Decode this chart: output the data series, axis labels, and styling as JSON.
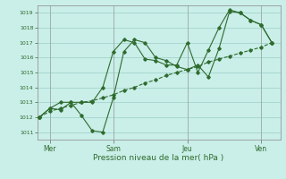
{
  "bg_color": "#caeee8",
  "grid_color": "#8ec8c0",
  "line_color": "#2e6b2e",
  "xlabel": "Pression niveau de la mer( hPa )",
  "ylim": [
    1010.5,
    1019.5
  ],
  "yticks": [
    1011,
    1012,
    1013,
    1014,
    1015,
    1016,
    1017,
    1018,
    1019
  ],
  "xlim": [
    -0.1,
    11.4
  ],
  "day_ticks": [
    0.5,
    3.5,
    7.0,
    10.5
  ],
  "day_labels": [
    "Mer",
    "Sam",
    "Jeu",
    "Ven"
  ],
  "day_vlines": [
    0.5,
    3.5,
    7.0,
    10.5
  ],
  "trend_x": [
    0.0,
    0.5,
    1.0,
    1.5,
    2.0,
    2.5,
    3.0,
    3.5,
    4.0,
    4.5,
    5.0,
    5.5,
    6.0,
    6.5,
    7.0,
    7.5,
    8.0,
    8.5,
    9.0,
    9.5,
    10.0,
    10.5,
    11.0
  ],
  "trend_y": [
    1012.0,
    1012.4,
    1012.6,
    1012.8,
    1013.0,
    1013.1,
    1013.3,
    1013.5,
    1013.8,
    1014.0,
    1014.3,
    1014.5,
    1014.8,
    1015.0,
    1015.2,
    1015.4,
    1015.7,
    1015.9,
    1016.1,
    1016.3,
    1016.5,
    1016.7,
    1017.0
  ],
  "line2_x": [
    0.0,
    0.5,
    1.0,
    1.5,
    2.0,
    2.5,
    3.0,
    3.5,
    4.0,
    4.5,
    5.0,
    5.5,
    6.0,
    6.5,
    7.0,
    7.5,
    8.0,
    8.5,
    9.0,
    9.5,
    10.0,
    10.5,
    11.0
  ],
  "line2_y": [
    1012.0,
    1012.6,
    1013.0,
    1013.0,
    1012.1,
    1011.1,
    1011.0,
    1013.3,
    1016.4,
    1017.2,
    1017.0,
    1016.0,
    1015.8,
    1015.4,
    1015.2,
    1015.5,
    1014.7,
    1016.6,
    1019.1,
    1019.0,
    1018.5,
    1018.2,
    1017.0
  ],
  "line3_x": [
    0.0,
    0.5,
    1.0,
    1.5,
    2.0,
    2.5,
    3.0,
    3.5,
    4.0,
    4.5,
    5.0,
    5.5,
    6.0,
    6.5,
    7.0,
    7.5,
    8.0,
    8.5,
    9.0,
    9.5,
    10.0,
    10.5,
    11.0
  ],
  "line3_y": [
    1012.0,
    1012.6,
    1012.5,
    1013.0,
    1013.0,
    1013.0,
    1014.0,
    1016.4,
    1017.2,
    1017.0,
    1015.9,
    1015.8,
    1015.5,
    1015.5,
    1017.0,
    1015.0,
    1016.5,
    1018.0,
    1019.2,
    1019.0,
    1018.5,
    1018.2,
    1017.0
  ]
}
